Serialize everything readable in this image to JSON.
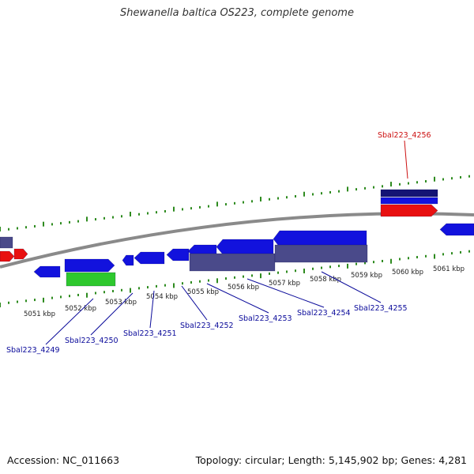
{
  "title": "Shewanella baltica OS223, complete genome",
  "footer": {
    "accession": "Accession: NC_011663",
    "summary": "Topology: circular; Length: 5,145,902 bp; Genes: 4,281"
  },
  "colors": {
    "background": "#ffffff",
    "backbone": "#8a8a8a",
    "tick": "#2e8b1f",
    "gene_forward": "#1010e0",
    "gene_reverse": "#1212dd",
    "gene_highlight": "#e81010",
    "gene_green": "#2ec82e",
    "gene_purple": "#4a4a8a",
    "gene_navy": "#151575",
    "label_normal": "#0a0a9a",
    "label_selected": "#cc1010",
    "kbp_text": "#222222"
  },
  "kbp_labels": [
    "5051 kbp",
    "5052 kbp",
    "5053 kbp",
    "5054 kbp",
    "5055 kbp",
    "5056 kbp",
    "5057 kbp",
    "5058 kbp",
    "5059 kbp",
    "5060 kbp",
    "5061 kbp"
  ],
  "gene_labels": [
    {
      "text": "Sbal223_4249",
      "selected": false
    },
    {
      "text": "Sbal223_4250",
      "selected": false
    },
    {
      "text": "Sbal223_4251",
      "selected": false
    },
    {
      "text": "Sbal223_4252",
      "selected": false
    },
    {
      "text": "Sbal223_4253",
      "selected": false
    },
    {
      "text": "Sbal223_4254",
      "selected": false
    },
    {
      "text": "Sbal223_4255",
      "selected": false
    },
    {
      "text": "Sbal223_4256",
      "selected": true
    }
  ]
}
